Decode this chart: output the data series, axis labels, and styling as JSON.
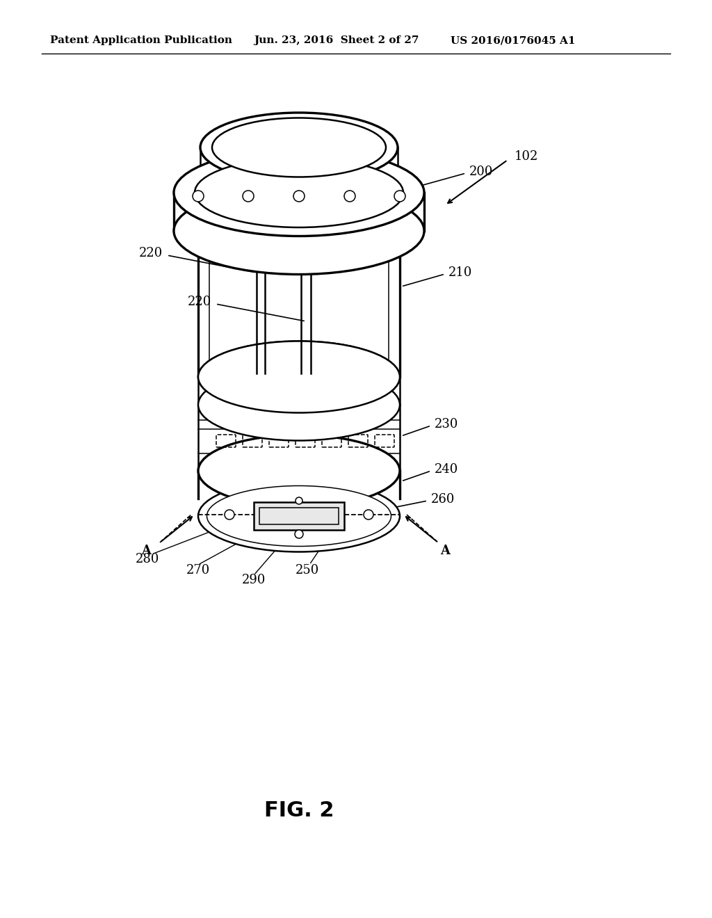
{
  "bg_color": "#ffffff",
  "line_color": "#000000",
  "header_left": "Patent Application Publication",
  "header_mid": "Jun. 23, 2016  Sheet 2 of 27",
  "header_right": "US 2016/0176045 A1",
  "fig_label": "FIG. 2",
  "label_102": "102",
  "label_200": "200",
  "label_210": "210",
  "label_220a": "220",
  "label_220b": "220",
  "label_230": "230",
  "label_240": "240",
  "label_260": "260",
  "label_280": "280",
  "label_270": "270",
  "label_290": "290",
  "label_250": "250",
  "label_A_left": "A",
  "label_A_right": "A",
  "lw_main": 1.8,
  "lw_thin": 1.1,
  "lw_thick": 2.4,
  "fs_label": 13,
  "fs_header": 11,
  "fs_fig": 22
}
